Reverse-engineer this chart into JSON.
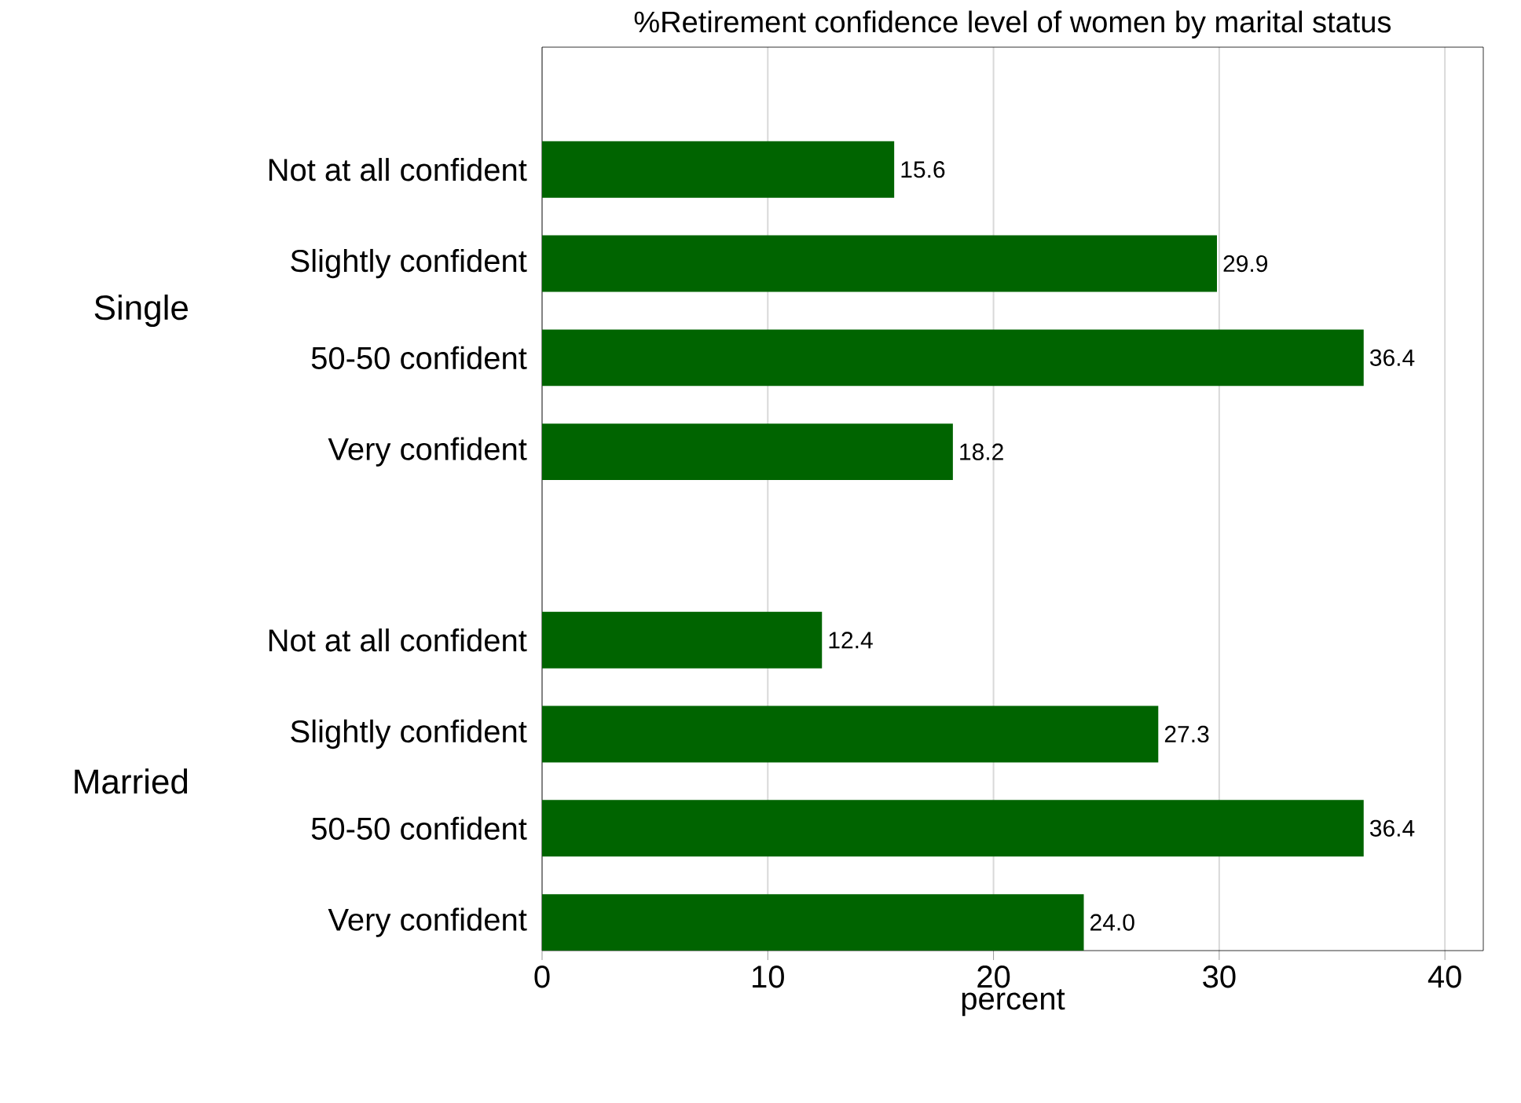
{
  "chart_data": {
    "type": "bar",
    "orientation": "horizontal",
    "title": "%Retirement confidence level of women by marital status",
    "xlabel": "percent",
    "categories": [
      "Not at all confident",
      "Slightly confident",
      "50-50 confident",
      "Very confident",
      null,
      "Not at all confident",
      "Slightly confident",
      "50-50 confident",
      "Very confident"
    ],
    "values": [
      15.6,
      29.9,
      36.4,
      18.2,
      null,
      12.4,
      27.3,
      36.4,
      24.0
    ],
    "value_labels": [
      "15.6",
      "29.9",
      "36.4",
      "18.2",
      null,
      "12.4",
      "27.3",
      "36.4",
      "24.0"
    ],
    "color": "#006400",
    "xlim": [
      0,
      41.7
    ],
    "xticks": [
      0,
      10,
      20,
      30,
      40
    ],
    "grid": "x",
    "annotations": [
      "Single",
      "Married"
    ]
  }
}
